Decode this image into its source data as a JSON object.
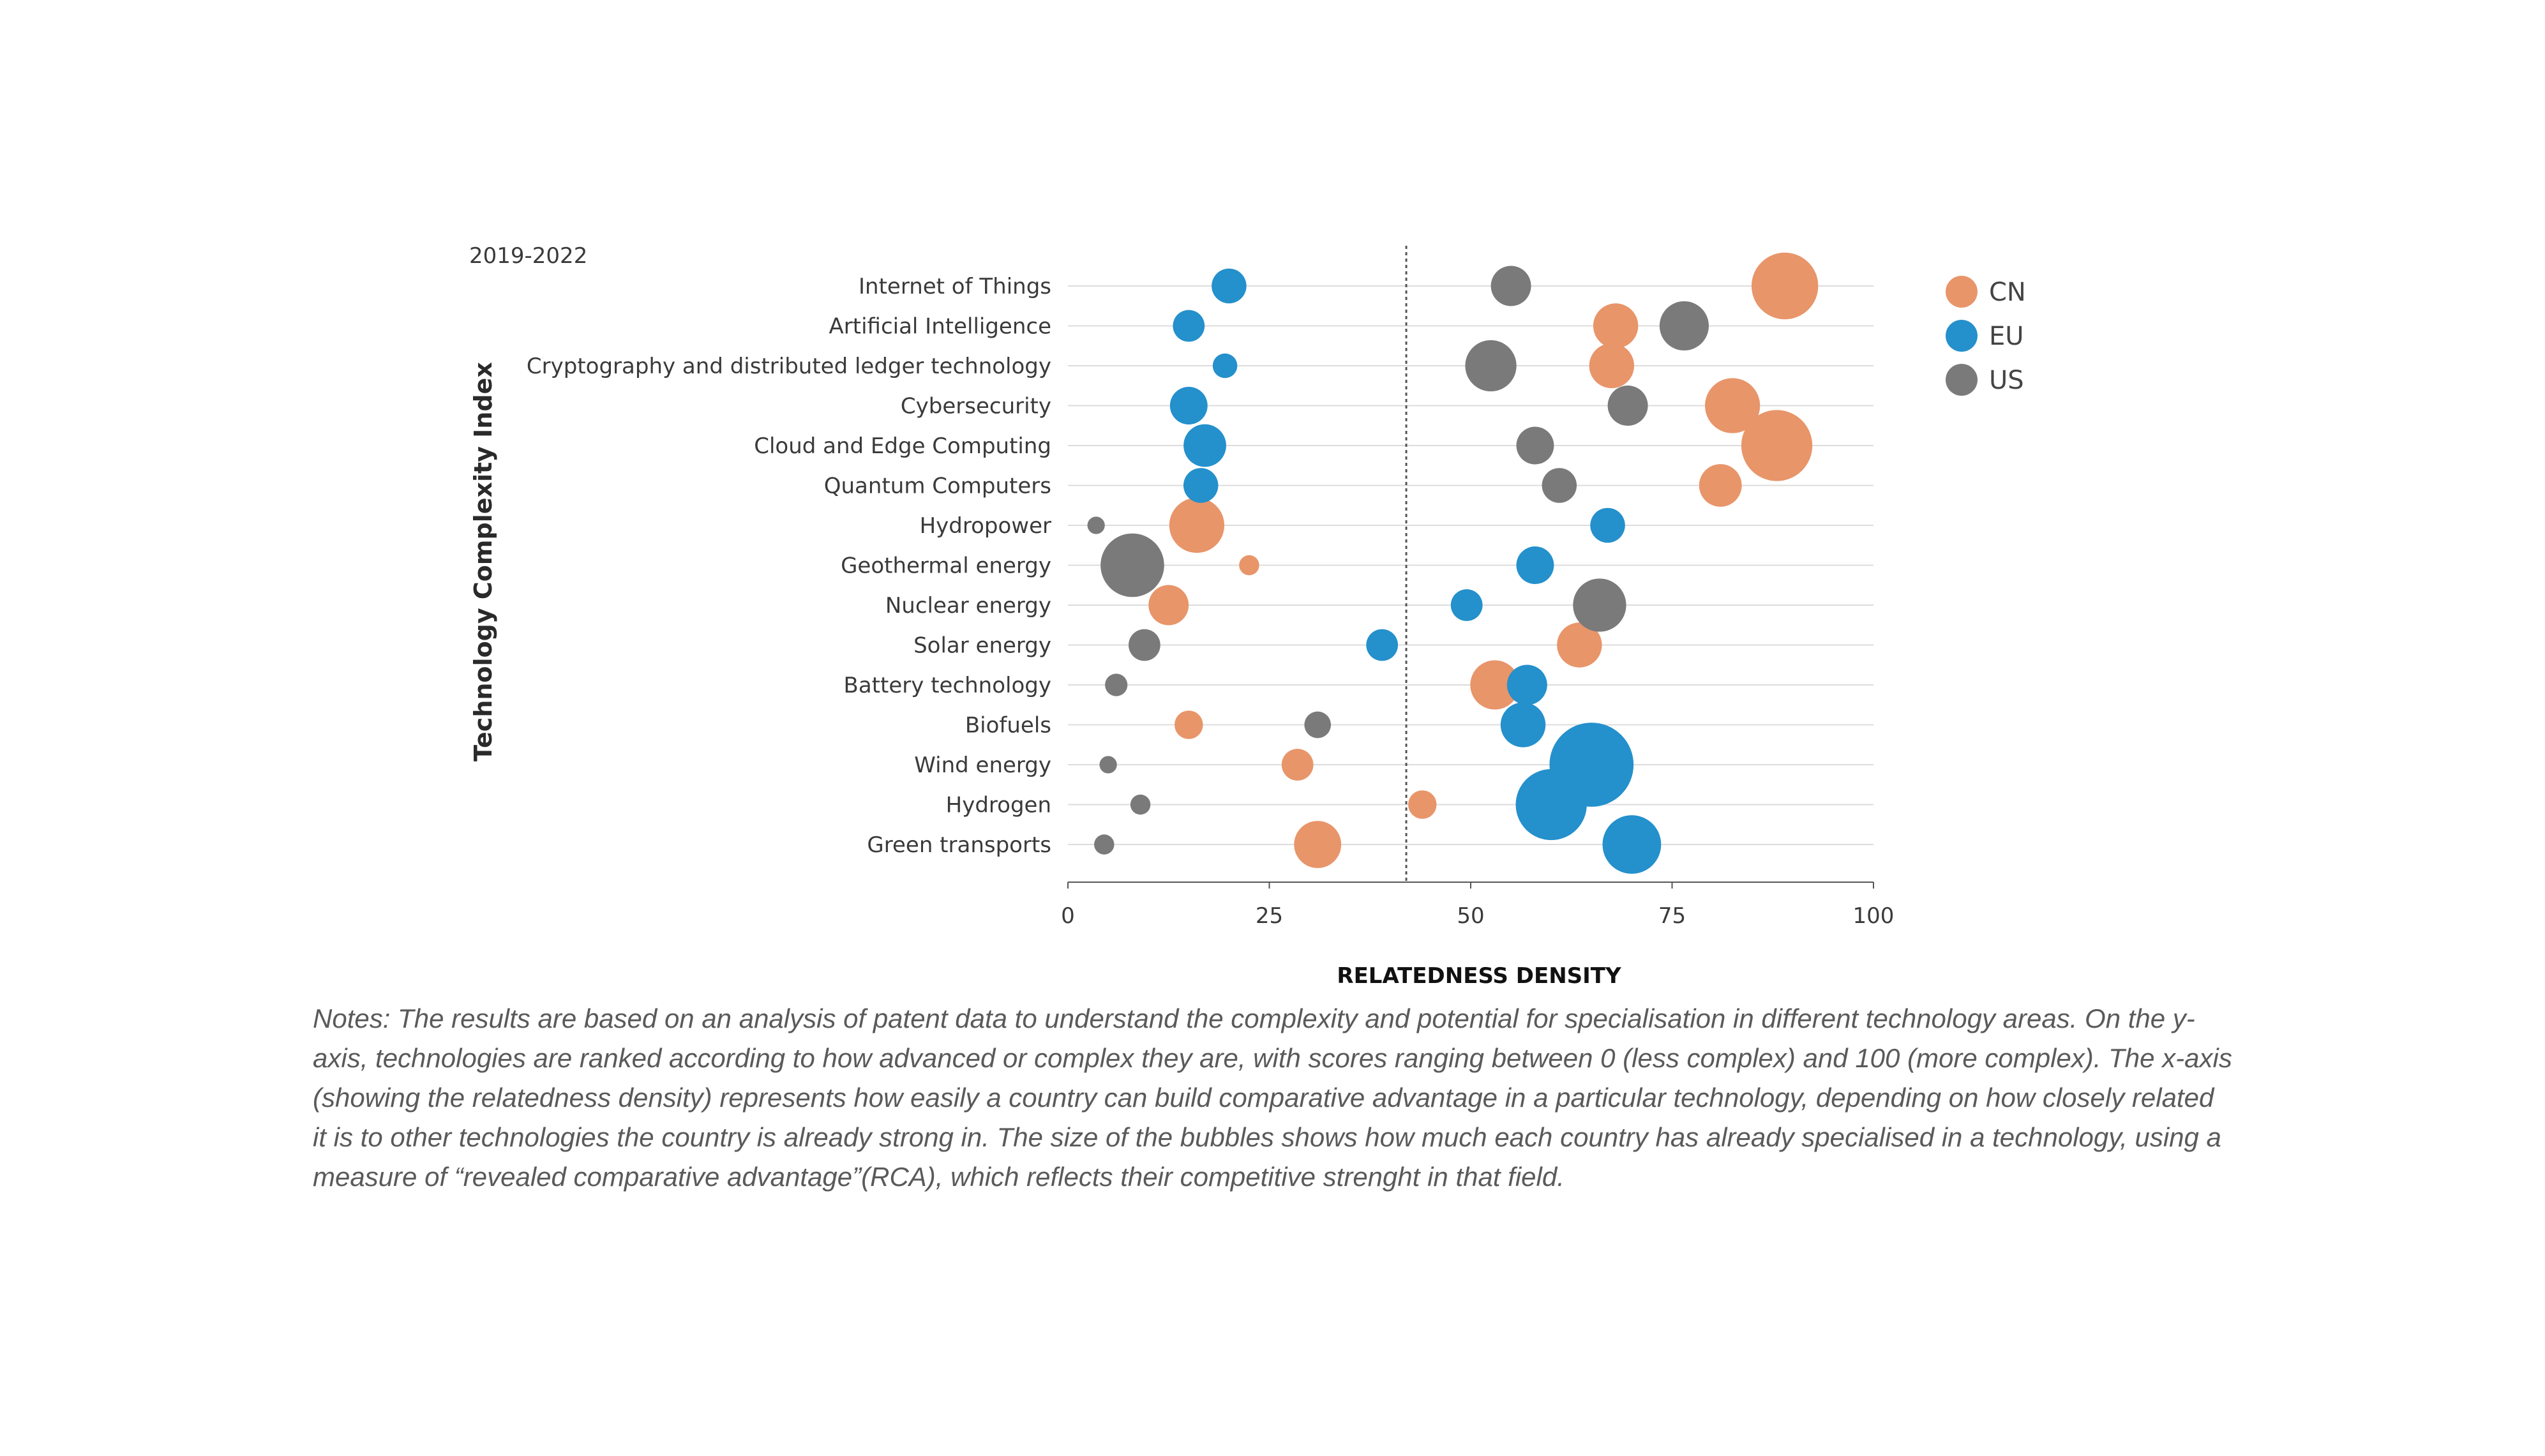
{
  "chart_data": {
    "type": "scatter",
    "subtype": "bubble",
    "period": "2019-2022",
    "xlabel": "RELATEDNESS DENSITY",
    "ylabel": "Technology Complexity Index",
    "xlim": [
      0,
      100
    ],
    "xticks": [
      "0",
      "25",
      "50",
      "75",
      "100"
    ],
    "reference_line_x": 42,
    "grid": "horizontal",
    "legend_position": "right",
    "categories": [
      "Internet of Things",
      "Artificial Intelligence",
      "Cryptography and distributed ledger technology",
      "Cybersecurity",
      "Cloud and Edge Computing",
      "Quantum Computers",
      "Hydropower",
      "Geothermal energy",
      "Nuclear energy",
      "Solar energy",
      "Battery technology",
      "Biofuels",
      "Wind energy",
      "Hydrogen",
      "Green transports"
    ],
    "series": [
      {
        "name": "CN",
        "color": "#e8956a",
        "x": [
          89,
          68,
          67.5,
          82.5,
          88,
          81,
          16,
          22.5,
          12.5,
          63.5,
          53,
          15,
          28.5,
          44,
          31
        ],
        "size": [
          2.2,
          1.0,
          1.0,
          1.5,
          2.5,
          0.9,
          1.5,
          0.2,
          0.8,
          1.0,
          1.2,
          0.4,
          0.5,
          0.4,
          1.1
        ]
      },
      {
        "name": "EU",
        "color": "#2490cc",
        "x": [
          20,
          15,
          19.5,
          15,
          17,
          16.5,
          67,
          58,
          49.5,
          39,
          57,
          56.5,
          65,
          60,
          70
        ],
        "size": [
          0.6,
          0.5,
          0.3,
          0.7,
          0.9,
          0.6,
          0.6,
          0.7,
          0.5,
          0.5,
          0.8,
          1.0,
          3.5,
          2.5,
          1.7
        ]
      },
      {
        "name": "US",
        "color": "#7a7a7a",
        "x": [
          55,
          76.5,
          52.5,
          69.5,
          58,
          61,
          3.5,
          8,
          66,
          9.5,
          6,
          31,
          5,
          9,
          4.5
        ],
        "size": [
          0.8,
          1.2,
          1.3,
          0.8,
          0.7,
          0.6,
          0.15,
          2.0,
          1.4,
          0.5,
          0.25,
          0.35,
          0.15,
          0.2,
          0.2
        ]
      }
    ]
  },
  "notes": "Notes: The results are based on an analysis of patent data to understand the complexity and potential for specialisation in different technology areas. On the y-axis, technologies are ranked according to how advanced or complex they are, with scores ranging between 0 (less complex) and 100 (more complex). The x-axis (showing the relatedness density) represents how easily a country can build comparative advantage in a particular technology, depending on how closely related it is to other technologies the country is already strong in. The size of the bubbles shows how much each country has already specialised in a technology, using a measure of “revealed comparative advantage”(RCA), which reflects their competitive strenght in that field."
}
